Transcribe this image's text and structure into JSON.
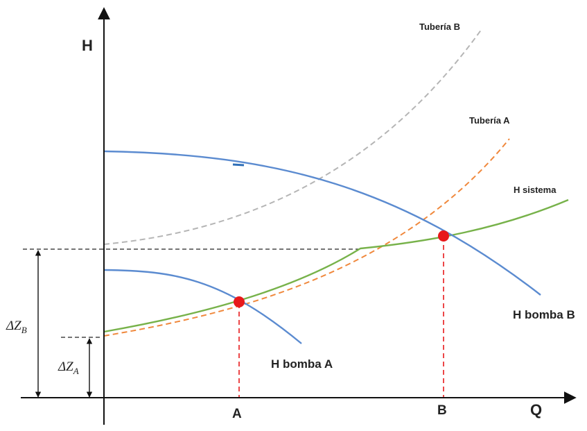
{
  "axes": {
    "y_label": "H",
    "x_label": "Q"
  },
  "curves": {
    "tuberia_b": "Tubería B",
    "tuberia_a": "Tubería A",
    "h_sistema": "H sistema",
    "h_bomba_b": "H bomba B",
    "h_bomba_a": "H bomba A"
  },
  "points": {
    "a": "A",
    "b": "B"
  },
  "dimensions": {
    "delta_z_b": {
      "main": "ΔZ",
      "sub": "B"
    },
    "delta_z_a": {
      "main": "ΔZ",
      "sub": "A"
    }
  },
  "colors": {
    "pump_curve": "#5b8bd0",
    "system_curve": "#77b24a",
    "pipe_a": "#f0883c",
    "pipe_b": "#b5b5b5",
    "operating_point": "#e8181a",
    "axis": "#111111"
  }
}
